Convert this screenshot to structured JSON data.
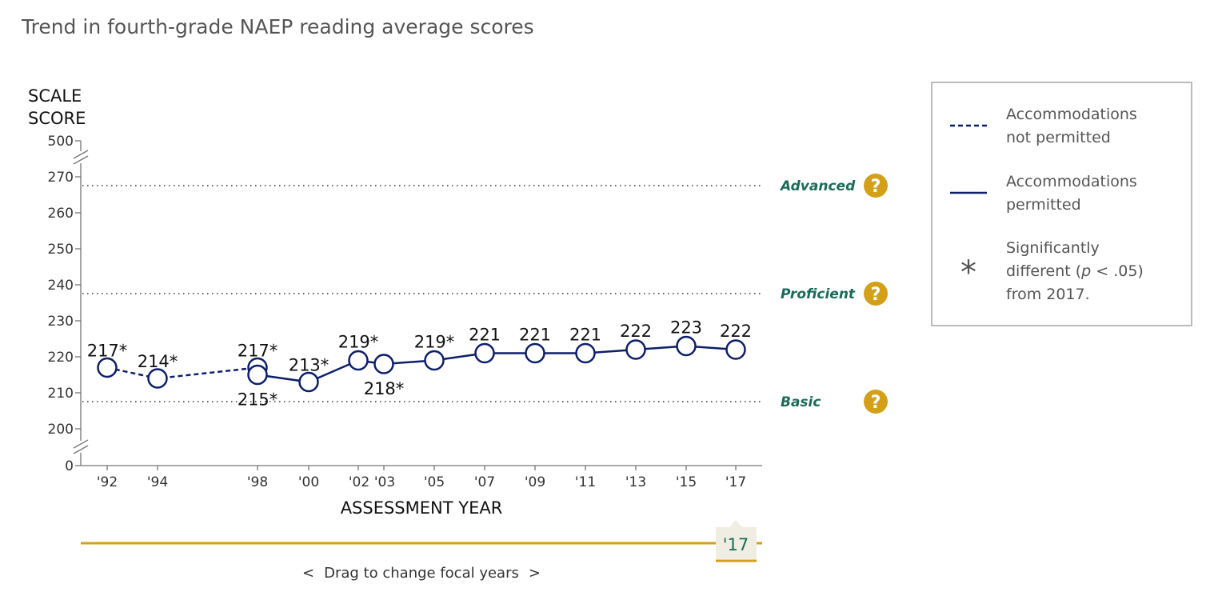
{
  "title": "Trend in fourth-grade NAEP reading average scores",
  "colors": {
    "series": "#0d1f6b",
    "accent": "#d4a017",
    "level_label": "#1a6b5a",
    "title": "#555555",
    "axis": "#777777",
    "legend_border": "#bbbbbb",
    "slider_tab": "#f0ede3"
  },
  "chart_data": {
    "type": "line",
    "ylabel": "SCALE SCORE",
    "xlabel": "ASSESSMENT YEAR",
    "y_ticks": [
      "500",
      "270",
      "260",
      "250",
      "240",
      "230",
      "220",
      "210",
      "200",
      "0"
    ],
    "y_visible_range": [
      200,
      270
    ],
    "y_axis_breaks": "broken axis between 0 and 200 and between 270 and 500",
    "x_tick_labels": [
      "'92",
      "'94",
      "'98",
      "'00",
      "'02",
      "'03",
      "'05",
      "'07",
      "'09",
      "'11",
      "'13",
      "'15",
      "'17"
    ],
    "achievement_levels": [
      {
        "name": "Advanced",
        "score": 268
      },
      {
        "name": "Proficient",
        "score": 238
      },
      {
        "name": "Basic",
        "score": 208
      }
    ],
    "series": [
      {
        "name": "Accommodations not permitted",
        "style": "dashed",
        "points": [
          {
            "year": 1992,
            "value": 217,
            "label": "217*"
          },
          {
            "year": 1994,
            "value": 214,
            "label": "214*"
          },
          {
            "year": 1998,
            "value": 217,
            "label": "217*"
          }
        ]
      },
      {
        "name": "Accommodations permitted",
        "style": "solid",
        "points": [
          {
            "year": 1998,
            "value": 215,
            "label": "215*"
          },
          {
            "year": 2000,
            "value": 213,
            "label": "213*"
          },
          {
            "year": 2002,
            "value": 219,
            "label": "219*"
          },
          {
            "year": 2003,
            "value": 218,
            "label": "218*"
          },
          {
            "year": 2005,
            "value": 219,
            "label": "219*"
          },
          {
            "year": 2007,
            "value": 221,
            "label": "221"
          },
          {
            "year": 2009,
            "value": 221,
            "label": "221"
          },
          {
            "year": 2011,
            "value": 221,
            "label": "221"
          },
          {
            "year": 2013,
            "value": 222,
            "label": "222"
          },
          {
            "year": 2015,
            "value": 223,
            "label": "223"
          },
          {
            "year": 2017,
            "value": 222,
            "label": "222"
          }
        ]
      }
    ],
    "legend": {
      "placement": "right",
      "items": [
        {
          "type": "dashed",
          "label_lines": [
            "Accommodations",
            "not permitted"
          ]
        },
        {
          "type": "solid",
          "label_lines": [
            "Accommodations",
            "permitted"
          ]
        },
        {
          "type": "asterisk",
          "symbol": "*",
          "label_lines": [
            "Significantly",
            "different (",
            "p",
            " < .05)",
            "from 2017."
          ]
        }
      ]
    }
  },
  "help_icon_glyph": "?",
  "slider": {
    "focal_year_label": "'17",
    "hint_left": "<",
    "hint": "Drag to change focal years",
    "hint_right": ">"
  }
}
